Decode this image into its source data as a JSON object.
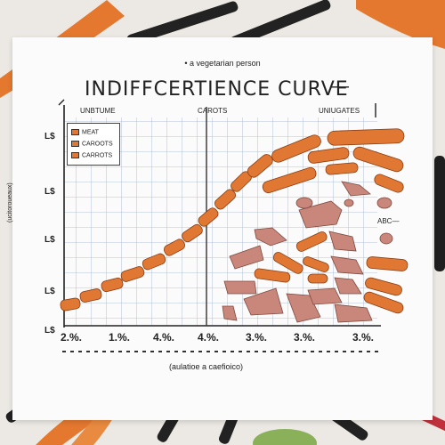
{
  "subtitle": "• a vegetarian person",
  "title": "INDIFFCERTIENCE CURVE",
  "title_dash": "—",
  "column_labels": [
    "UNBTUME",
    "CAROTS",
    "UNIUGATES"
  ],
  "legend": [
    "MEAT",
    "CAROOTS",
    "CARROTS"
  ],
  "y_ticks": [
    "L$",
    "L$",
    "L$",
    "L$",
    "L$"
  ],
  "y_axis_label": "(ucitoroueaux)",
  "x_ticks": [
    "2.%.",
    "1.%.",
    "4.%.",
    "4.%.",
    "3.%.",
    "3.%.",
    "3.%."
  ],
  "x_axis_label": "(aulatioe a caefioico)",
  "side_label": "ABC—",
  "colors": {
    "carrot": "#e07834",
    "meat": "#c9867a",
    "paper": "#fbfbfb",
    "grid": "#9fb3cf"
  }
}
